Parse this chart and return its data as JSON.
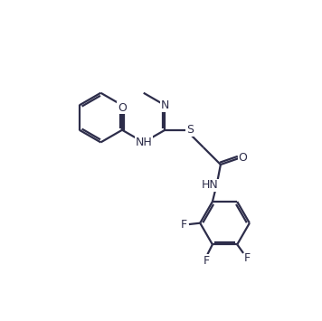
{
  "background_color": "#ffffff",
  "bond_color": "#2d2d4a",
  "label_color": "#2d2d4a",
  "figsize": [
    3.56,
    3.55
  ],
  "dpi": 100,
  "lw": 1.6,
  "fs": 9.0,
  "xlim": [
    0,
    10
  ],
  "ylim": [
    0,
    10
  ]
}
